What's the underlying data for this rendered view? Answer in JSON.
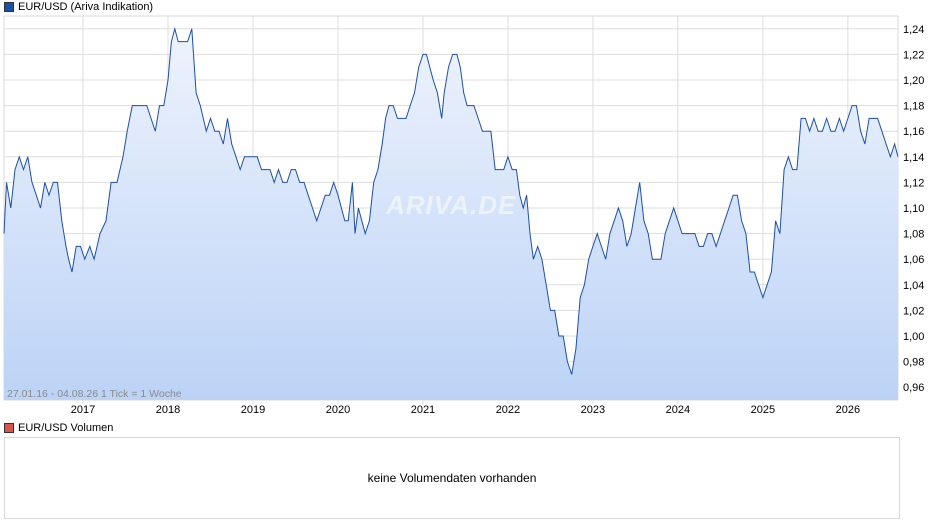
{
  "legend": {
    "price_label": "EUR/USD (Ariva Indikation)",
    "volume_label": "EUR/USD Volumen"
  },
  "colors": {
    "line": "#1c4fa8",
    "fill_top": "#eef3fd",
    "fill_bottom": "#bcd3f6",
    "grid": "#dddddd",
    "price_swatch": "#1c4fa8",
    "volume_swatch": "#d9534f"
  },
  "range_label": "27.01.16 - 04.08.26   1 Tick = 1 Woche",
  "watermark": "ARIVA.DE",
  "volume_message": "keine Volumendaten vorhanden",
  "chart_data": {
    "type": "area",
    "title": "EUR/USD (Ariva Indikation)",
    "ylim": [
      0.95,
      1.25
    ],
    "yticks": [
      "0,96",
      "0,98",
      "1,00",
      "1,02",
      "1,04",
      "1,06",
      "1,08",
      "1,10",
      "1,12",
      "1,14",
      "1,16",
      "1,18",
      "1,20",
      "1,22",
      "1,24"
    ],
    "xlim": [
      2016.07,
      2026.59
    ],
    "xticks": [
      "2017",
      "2018",
      "2019",
      "2020",
      "2021",
      "2022",
      "2023",
      "2024",
      "2025",
      "2026"
    ],
    "grid": true,
    "series": [
      {
        "name": "EUR/USD",
        "points": [
          [
            2016.07,
            1.08
          ],
          [
            2016.1,
            1.12
          ],
          [
            2016.15,
            1.1
          ],
          [
            2016.2,
            1.13
          ],
          [
            2016.25,
            1.14
          ],
          [
            2016.3,
            1.13
          ],
          [
            2016.35,
            1.14
          ],
          [
            2016.4,
            1.12
          ],
          [
            2016.45,
            1.11
          ],
          [
            2016.5,
            1.1
          ],
          [
            2016.55,
            1.12
          ],
          [
            2016.6,
            1.11
          ],
          [
            2016.65,
            1.12
          ],
          [
            2016.7,
            1.12
          ],
          [
            2016.75,
            1.09
          ],
          [
            2016.8,
            1.07
          ],
          [
            2016.83,
            1.06
          ],
          [
            2016.87,
            1.05
          ],
          [
            2016.92,
            1.07
          ],
          [
            2016.97,
            1.07
          ],
          [
            2017.02,
            1.06
          ],
          [
            2017.08,
            1.07
          ],
          [
            2017.13,
            1.06
          ],
          [
            2017.2,
            1.08
          ],
          [
            2017.27,
            1.09
          ],
          [
            2017.33,
            1.12
          ],
          [
            2017.4,
            1.12
          ],
          [
            2017.47,
            1.14
          ],
          [
            2017.52,
            1.16
          ],
          [
            2017.58,
            1.18
          ],
          [
            2017.65,
            1.18
          ],
          [
            2017.7,
            1.18
          ],
          [
            2017.75,
            1.18
          ],
          [
            2017.8,
            1.17
          ],
          [
            2017.85,
            1.16
          ],
          [
            2017.9,
            1.18
          ],
          [
            2017.95,
            1.18
          ],
          [
            2018.0,
            1.2
          ],
          [
            2018.04,
            1.23
          ],
          [
            2018.08,
            1.24
          ],
          [
            2018.12,
            1.23
          ],
          [
            2018.18,
            1.23
          ],
          [
            2018.23,
            1.23
          ],
          [
            2018.28,
            1.24
          ],
          [
            2018.33,
            1.19
          ],
          [
            2018.38,
            1.18
          ],
          [
            2018.45,
            1.16
          ],
          [
            2018.5,
            1.17
          ],
          [
            2018.55,
            1.16
          ],
          [
            2018.6,
            1.16
          ],
          [
            2018.65,
            1.15
          ],
          [
            2018.7,
            1.17
          ],
          [
            2018.75,
            1.15
          ],
          [
            2018.8,
            1.14
          ],
          [
            2018.85,
            1.13
          ],
          [
            2018.9,
            1.14
          ],
          [
            2018.95,
            1.14
          ],
          [
            2019.0,
            1.14
          ],
          [
            2019.05,
            1.14
          ],
          [
            2019.1,
            1.13
          ],
          [
            2019.15,
            1.13
          ],
          [
            2019.2,
            1.13
          ],
          [
            2019.25,
            1.12
          ],
          [
            2019.3,
            1.13
          ],
          [
            2019.35,
            1.12
          ],
          [
            2019.4,
            1.12
          ],
          [
            2019.45,
            1.13
          ],
          [
            2019.5,
            1.13
          ],
          [
            2019.55,
            1.12
          ],
          [
            2019.6,
            1.12
          ],
          [
            2019.65,
            1.11
          ],
          [
            2019.7,
            1.1
          ],
          [
            2019.75,
            1.09
          ],
          [
            2019.8,
            1.1
          ],
          [
            2019.85,
            1.11
          ],
          [
            2019.9,
            1.11
          ],
          [
            2019.95,
            1.12
          ],
          [
            2020.0,
            1.11
          ],
          [
            2020.04,
            1.1
          ],
          [
            2020.08,
            1.09
          ],
          [
            2020.12,
            1.09
          ],
          [
            2020.17,
            1.12
          ],
          [
            2020.2,
            1.08
          ],
          [
            2020.24,
            1.1
          ],
          [
            2020.28,
            1.09
          ],
          [
            2020.32,
            1.08
          ],
          [
            2020.37,
            1.09
          ],
          [
            2020.42,
            1.12
          ],
          [
            2020.47,
            1.13
          ],
          [
            2020.52,
            1.15
          ],
          [
            2020.56,
            1.17
          ],
          [
            2020.6,
            1.18
          ],
          [
            2020.65,
            1.18
          ],
          [
            2020.7,
            1.17
          ],
          [
            2020.75,
            1.17
          ],
          [
            2020.8,
            1.17
          ],
          [
            2020.85,
            1.18
          ],
          [
            2020.9,
            1.19
          ],
          [
            2020.95,
            1.21
          ],
          [
            2021.0,
            1.22
          ],
          [
            2021.04,
            1.22
          ],
          [
            2021.08,
            1.21
          ],
          [
            2021.12,
            1.2
          ],
          [
            2021.17,
            1.19
          ],
          [
            2021.22,
            1.17
          ],
          [
            2021.25,
            1.19
          ],
          [
            2021.3,
            1.21
          ],
          [
            2021.35,
            1.22
          ],
          [
            2021.4,
            1.22
          ],
          [
            2021.44,
            1.21
          ],
          [
            2021.48,
            1.19
          ],
          [
            2021.52,
            1.18
          ],
          [
            2021.56,
            1.18
          ],
          [
            2021.6,
            1.18
          ],
          [
            2021.65,
            1.17
          ],
          [
            2021.7,
            1.16
          ],
          [
            2021.75,
            1.16
          ],
          [
            2021.8,
            1.16
          ],
          [
            2021.85,
            1.13
          ],
          [
            2021.9,
            1.13
          ],
          [
            2021.95,
            1.13
          ],
          [
            2022.0,
            1.14
          ],
          [
            2022.05,
            1.13
          ],
          [
            2022.1,
            1.13
          ],
          [
            2022.14,
            1.11
          ],
          [
            2022.18,
            1.1
          ],
          [
            2022.22,
            1.11
          ],
          [
            2022.26,
            1.08
          ],
          [
            2022.3,
            1.06
          ],
          [
            2022.35,
            1.07
          ],
          [
            2022.4,
            1.06
          ],
          [
            2022.45,
            1.04
          ],
          [
            2022.5,
            1.02
          ],
          [
            2022.55,
            1.02
          ],
          [
            2022.6,
            1.0
          ],
          [
            2022.65,
            1.0
          ],
          [
            2022.7,
            0.98
          ],
          [
            2022.75,
            0.97
          ],
          [
            2022.8,
            0.99
          ],
          [
            2022.85,
            1.03
          ],
          [
            2022.9,
            1.04
          ],
          [
            2022.95,
            1.06
          ],
          [
            2023.0,
            1.07
          ],
          [
            2023.05,
            1.08
          ],
          [
            2023.1,
            1.07
          ],
          [
            2023.15,
            1.06
          ],
          [
            2023.2,
            1.08
          ],
          [
            2023.25,
            1.09
          ],
          [
            2023.3,
            1.1
          ],
          [
            2023.35,
            1.09
          ],
          [
            2023.4,
            1.07
          ],
          [
            2023.45,
            1.08
          ],
          [
            2023.5,
            1.1
          ],
          [
            2023.55,
            1.12
          ],
          [
            2023.6,
            1.09
          ],
          [
            2023.65,
            1.08
          ],
          [
            2023.7,
            1.06
          ],
          [
            2023.75,
            1.06
          ],
          [
            2023.8,
            1.06
          ],
          [
            2023.85,
            1.08
          ],
          [
            2023.9,
            1.09
          ],
          [
            2023.95,
            1.1
          ],
          [
            2024.0,
            1.09
          ],
          [
            2024.05,
            1.08
          ],
          [
            2024.1,
            1.08
          ],
          [
            2024.15,
            1.08
          ],
          [
            2024.2,
            1.08
          ],
          [
            2024.25,
            1.07
          ],
          [
            2024.3,
            1.07
          ],
          [
            2024.35,
            1.08
          ],
          [
            2024.4,
            1.08
          ],
          [
            2024.45,
            1.07
          ],
          [
            2024.5,
            1.08
          ],
          [
            2024.55,
            1.09
          ],
          [
            2024.6,
            1.1
          ],
          [
            2024.65,
            1.11
          ],
          [
            2024.7,
            1.11
          ],
          [
            2024.75,
            1.09
          ],
          [
            2024.8,
            1.08
          ],
          [
            2024.85,
            1.05
          ],
          [
            2024.9,
            1.05
          ],
          [
            2024.95,
            1.04
          ],
          [
            2025.0,
            1.03
          ],
          [
            2025.05,
            1.04
          ],
          [
            2025.1,
            1.05
          ],
          [
            2025.15,
            1.09
          ],
          [
            2025.2,
            1.08
          ],
          [
            2025.25,
            1.13
          ],
          [
            2025.3,
            1.14
          ],
          [
            2025.35,
            1.13
          ],
          [
            2025.4,
            1.13
          ],
          [
            2025.45,
            1.17
          ],
          [
            2025.5,
            1.17
          ],
          [
            2025.55,
            1.16
          ],
          [
            2025.6,
            1.17
          ],
          [
            2025.65,
            1.16
          ],
          [
            2025.7,
            1.16
          ],
          [
            2025.75,
            1.17
          ],
          [
            2025.8,
            1.16
          ],
          [
            2025.85,
            1.16
          ],
          [
            2025.9,
            1.17
          ],
          [
            2025.95,
            1.16
          ],
          [
            2026.0,
            1.17
          ],
          [
            2026.05,
            1.18
          ],
          [
            2026.1,
            1.18
          ],
          [
            2026.15,
            1.16
          ],
          [
            2026.2,
            1.15
          ],
          [
            2026.25,
            1.17
          ],
          [
            2026.3,
            1.17
          ],
          [
            2026.35,
            1.17
          ],
          [
            2026.4,
            1.16
          ],
          [
            2026.45,
            1.15
          ],
          [
            2026.5,
            1.14
          ],
          [
            2026.55,
            1.15
          ],
          [
            2026.59,
            1.14
          ]
        ]
      }
    ]
  }
}
